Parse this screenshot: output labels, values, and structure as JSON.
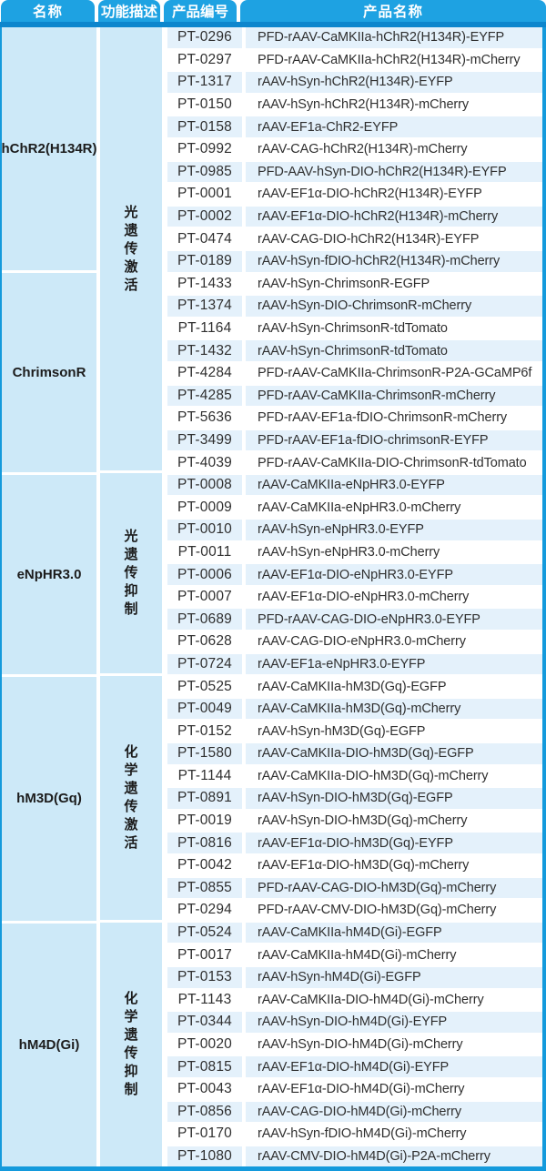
{
  "colors": {
    "header_blue": "#1ea2e2",
    "header_bar_blue": "#0d86cd",
    "frame_blue": "#149adc",
    "group_bg": "#cde9f8",
    "stripe_bg": "#e4f1fb",
    "text": "#2f2f2f"
  },
  "table": {
    "columns": [
      "名称",
      "功能描述",
      "产品编号",
      "产品名称"
    ],
    "function_sections": [
      {
        "label": "光遗传激活",
        "row_span": 20
      },
      {
        "label": "光遗传抑制",
        "row_span": 9
      },
      {
        "label": "化学遗传激活",
        "row_span": 11
      },
      {
        "label": "化学遗传抑制",
        "row_span": 11
      }
    ],
    "groups": [
      {
        "name": "hChR2(H134R)",
        "rows": [
          {
            "code": "PT-0296",
            "product": "PFD-rAAV-CaMKIIa-hChR2(H134R)-EYFP"
          },
          {
            "code": "PT-0297",
            "product": "PFD-rAAV-CaMKIIa-hChR2(H134R)-mCherry"
          },
          {
            "code": "PT-1317",
            "product": "rAAV-hSyn-hChR2(H134R)-EYFP"
          },
          {
            "code": "PT-0150",
            "product": "rAAV-hSyn-hChR2(H134R)-mCherry"
          },
          {
            "code": "PT-0158",
            "product": "rAAV-EF1a-ChR2-EYFP"
          },
          {
            "code": "PT-0992",
            "product": "rAAV-CAG-hChR2(H134R)-mCherry"
          },
          {
            "code": "PT-0985",
            "product": "PFD-AAV-hSyn-DIO-hChR2(H134R)-EYFP"
          },
          {
            "code": "PT-0001",
            "product": "rAAV-EF1α-DIO-hChR2(H134R)-EYFP"
          },
          {
            "code": "PT-0002",
            "product": "rAAV-EF1α-DIO-hChR2(H134R)-mCherry"
          },
          {
            "code": "PT-0474",
            "product": "rAAV-CAG-DIO-hChR2(H134R)-EYFP"
          },
          {
            "code": "PT-0189",
            "product": "rAAV-hSyn-fDIO-hChR2(H134R)-mCherry"
          }
        ]
      },
      {
        "name": "ChrimsonR",
        "rows": [
          {
            "code": "PT-1433",
            "product": "rAAV-hSyn-ChrimsonR-EGFP"
          },
          {
            "code": "PT-1374",
            "product": "rAAV-hSyn-DIO-ChrimsonR-mCherry"
          },
          {
            "code": "PT-1164",
            "product": "rAAV-hSyn-ChrimsonR-tdTomato"
          },
          {
            "code": "PT-1432",
            "product": "rAAV-hSyn-ChrimsonR-tdTomato"
          },
          {
            "code": "PT-4284",
            "product": "PFD-rAAV-CaMKIIa-ChrimsonR-P2A-GCaMP6f"
          },
          {
            "code": "PT-4285",
            "product": "PFD-rAAV-CaMKIIa-ChrimsonR-mCherry"
          },
          {
            "code": "PT-5636",
            "product": "PFD-rAAV-EF1a-fDIO-ChrimsonR-mCherry"
          },
          {
            "code": "PT-3499",
            "product": "PFD-rAAV-EF1a-fDIO-chrimsonR-EYFP"
          },
          {
            "code": "PT-4039",
            "product": "PFD-rAAV-CaMKIIa-DIO-ChrimsonR-tdTomato"
          }
        ]
      },
      {
        "name": "eNpHR3.0",
        "rows": [
          {
            "code": "PT-0008",
            "product": "rAAV-CaMKIIa-eNpHR3.0-EYFP"
          },
          {
            "code": "PT-0009",
            "product": "rAAV-CaMKIIa-eNpHR3.0-mCherry"
          },
          {
            "code": "PT-0010",
            "product": "rAAV-hSyn-eNpHR3.0-EYFP"
          },
          {
            "code": "PT-0011",
            "product": "rAAV-hSyn-eNpHR3.0-mCherry"
          },
          {
            "code": "PT-0006",
            "product": "rAAV-EF1α-DIO-eNpHR3.0-EYFP"
          },
          {
            "code": "PT-0007",
            "product": "rAAV-EF1α-DIO-eNpHR3.0-mCherry"
          },
          {
            "code": "PT-0689",
            "product": "PFD-rAAV-CAG-DIO-eNpHR3.0-EYFP"
          },
          {
            "code": "PT-0628",
            "product": "rAAV-CAG-DIO-eNpHR3.0-mCherry"
          },
          {
            "code": "PT-0724",
            "product": "rAAV-EF1a-eNpHR3.0-EYFP"
          }
        ]
      },
      {
        "name": "hM3D(Gq)",
        "rows": [
          {
            "code": "PT-0525",
            "product": "rAAV-CaMKIIa-hM3D(Gq)-EGFP"
          },
          {
            "code": "PT-0049",
            "product": "rAAV-CaMKIIa-hM3D(Gq)-mCherry"
          },
          {
            "code": "PT-0152",
            "product": "rAAV-hSyn-hM3D(Gq)-EGFP"
          },
          {
            "code": "PT-1580",
            "product": "rAAV-CaMKIIa-DIO-hM3D(Gq)-EGFP"
          },
          {
            "code": "PT-1144",
            "product": "rAAV-CaMKIIa-DIO-hM3D(Gq)-mCherry"
          },
          {
            "code": "PT-0891",
            "product": "rAAV-hSyn-DIO-hM3D(Gq)-EGFP"
          },
          {
            "code": "PT-0019",
            "product": "rAAV-hSyn-DIO-hM3D(Gq)-mCherry"
          },
          {
            "code": "PT-0816",
            "product": "rAAV-EF1α-DIO-hM3D(Gq)-EYFP"
          },
          {
            "code": "PT-0042",
            "product": "rAAV-EF1α-DIO-hM3D(Gq)-mCherry"
          },
          {
            "code": "PT-0855",
            "product": "PFD-rAAV-CAG-DIO-hM3D(Gq)-mCherry"
          },
          {
            "code": "PT-0294",
            "product": "PFD-rAAV-CMV-DIO-hM3D(Gq)-mCherry"
          }
        ]
      },
      {
        "name": "hM4D(Gi)",
        "rows": [
          {
            "code": "PT-0524",
            "product": "rAAV-CaMKIIa-hM4D(Gi)-EGFP"
          },
          {
            "code": "PT-0017",
            "product": "rAAV-CaMKIIa-hM4D(Gi)-mCherry"
          },
          {
            "code": "PT-0153",
            "product": "rAAV-hSyn-hM4D(Gi)-EGFP"
          },
          {
            "code": "PT-1143",
            "product": "rAAV-CaMKIIa-DIO-hM4D(Gi)-mCherry"
          },
          {
            "code": "PT-0344",
            "product": "rAAV-hSyn-DIO-hM4D(Gi)-EYFP"
          },
          {
            "code": "PT-0020",
            "product": "rAAV-hSyn-DIO-hM4D(Gi)-mCherry"
          },
          {
            "code": "PT-0815",
            "product": "rAAV-EF1α-DIO-hM4D(Gi)-EYFP"
          },
          {
            "code": "PT-0043",
            "product": "rAAV-EF1α-DIO-hM4D(Gi)-mCherry"
          },
          {
            "code": "PT-0856",
            "product": "rAAV-CAG-DIO-hM4D(Gi)-mCherry"
          },
          {
            "code": "PT-0170",
            "product": "rAAV-hSyn-fDIO-hM4D(Gi)-mCherry"
          },
          {
            "code": "PT-1080",
            "product": "rAAV-CMV-DIO-hM4D(Gi)-P2A-mCherry"
          }
        ]
      }
    ]
  }
}
